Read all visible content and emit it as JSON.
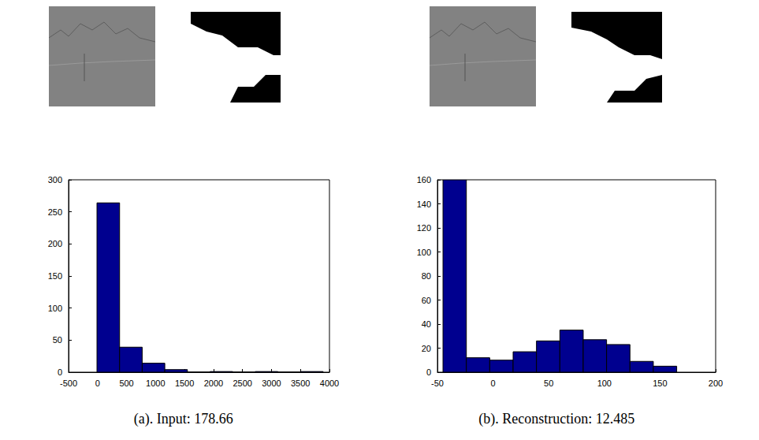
{
  "chart_data": [
    {
      "type": "histogram",
      "title": "(a). Input: 178.66",
      "bins": [
        -10,
        380,
        770,
        1160,
        1550,
        1940,
        2330,
        2720,
        3110,
        3500,
        3890
      ],
      "counts": [
        264,
        39,
        14,
        4,
        0,
        1,
        0,
        1,
        0,
        1
      ],
      "color": "#00008f",
      "xlim": [
        -500,
        4000
      ],
      "xticks": [
        -500,
        0,
        500,
        1000,
        1500,
        2000,
        2500,
        3000,
        3500,
        4000
      ],
      "ylim": [
        0,
        300
      ],
      "yticks": [
        0,
        50,
        100,
        150,
        200,
        250,
        300
      ],
      "grid": false
    },
    {
      "type": "histogram",
      "title": "(b). Reconstruction: 12.485",
      "bins": [
        -45,
        -24,
        -3,
        18,
        39,
        60,
        81,
        102,
        123,
        144,
        165
      ],
      "counts": [
        160,
        12,
        10,
        17,
        26,
        35,
        27,
        23,
        9,
        5
      ],
      "color": "#00008f",
      "xlim": [
        -50,
        200
      ],
      "xticks": [
        -50,
        0,
        50,
        100,
        150,
        200
      ],
      "ylim": [
        0,
        160
      ],
      "yticks": [
        0,
        20,
        40,
        60,
        80,
        100,
        120,
        140,
        160
      ],
      "grid": false
    }
  ]
}
